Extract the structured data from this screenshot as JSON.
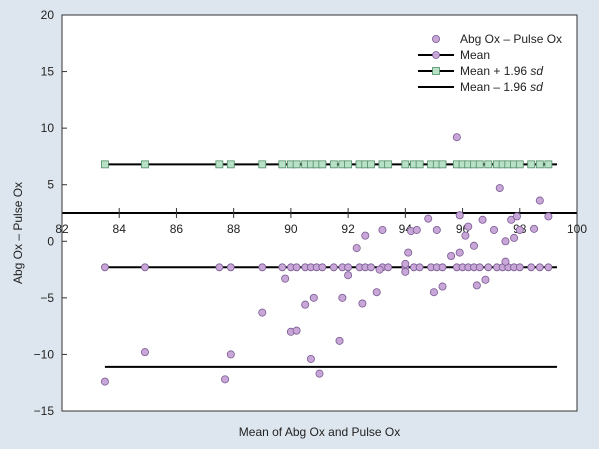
{
  "chart_data": {
    "type": "scatter",
    "xlabel": "Mean of Abg Ox and Pulse Ox",
    "ylabel": "Abg Ox – Pulse Ox",
    "xlim": [
      82,
      100
    ],
    "ylim": [
      -15,
      20
    ],
    "xticks": [
      "82",
      "84",
      "86",
      "88",
      "90",
      "92",
      "94",
      "96",
      "98",
      "100"
    ],
    "yticks": [
      "−15",
      "−10",
      "−5",
      "0",
      "5",
      "10",
      "15",
      "20"
    ],
    "grid": false,
    "legend_position": "top-right",
    "colors": {
      "background": "#dde6ee",
      "plot": "#ffffff",
      "scatter": "#c8a6d8",
      "scatter_edge": "#7a5a92",
      "mean_marker": "#c8a6d8",
      "upper_marker": "#b9e1c7",
      "upper_edge": "#4f8c66",
      "line": "#000000"
    },
    "legend": [
      {
        "key": "scatter",
        "label": "Abg Ox – Pulse Ox"
      },
      {
        "key": "mean",
        "label": "Mean"
      },
      {
        "key": "upper",
        "label_main": "Mean + 1.96 ",
        "label_em": "sd"
      },
      {
        "key": "lower",
        "label_main": "Mean – 1.96 ",
        "label_em": "sd"
      }
    ],
    "zero_line_y": 2.5,
    "mean_line": {
      "value": -2.3,
      "x_range": [
        83.5,
        99.3
      ],
      "marker_x": [
        83.5,
        84.9,
        87.5,
        87.9,
        89.0,
        89.7,
        90.0,
        90.2,
        90.5,
        90.7,
        90.9,
        91.1,
        91.5,
        91.8,
        92.0,
        92.4,
        92.6,
        92.8,
        93.2,
        93.4,
        94.0,
        94.3,
        94.5,
        94.9,
        95.1,
        95.3,
        95.8,
        96.0,
        96.2,
        96.4,
        96.6,
        96.9,
        97.2,
        97.4,
        97.6,
        97.8,
        98.0,
        98.4,
        98.7,
        99.0
      ]
    },
    "upper_line": {
      "value": 6.8,
      "x_range": [
        83.5,
        99.3
      ],
      "marker_x": [
        83.5,
        84.9,
        87.5,
        87.9,
        89.0,
        89.7,
        90.0,
        90.2,
        90.5,
        90.7,
        90.9,
        91.1,
        91.5,
        91.8,
        92.0,
        92.4,
        92.6,
        92.8,
        93.2,
        93.4,
        94.0,
        94.3,
        94.5,
        94.9,
        95.1,
        95.3,
        95.8,
        96.0,
        96.2,
        96.4,
        96.6,
        96.9,
        97.2,
        97.4,
        97.6,
        97.8,
        98.0,
        98.4,
        98.7,
        99.0
      ]
    },
    "lower_line": {
      "value": -11.1,
      "x_range": [
        83.5,
        99.3
      ]
    },
    "points": [
      {
        "x": 83.5,
        "y": -12.4
      },
      {
        "x": 84.9,
        "y": -9.8
      },
      {
        "x": 87.7,
        "y": -12.2
      },
      {
        "x": 87.9,
        "y": -10.0
      },
      {
        "x": 89.0,
        "y": -6.3
      },
      {
        "x": 89.8,
        "y": -3.3
      },
      {
        "x": 90.0,
        "y": -8.0
      },
      {
        "x": 90.2,
        "y": -7.9
      },
      {
        "x": 90.5,
        "y": -5.6
      },
      {
        "x": 90.8,
        "y": -5.0
      },
      {
        "x": 90.7,
        "y": -10.4
      },
      {
        "x": 91.0,
        "y": -11.7
      },
      {
        "x": 91.7,
        "y": -8.8
      },
      {
        "x": 91.8,
        "y": -5.0
      },
      {
        "x": 92.0,
        "y": -3.0
      },
      {
        "x": 92.3,
        "y": -0.6
      },
      {
        "x": 92.5,
        "y": -5.5
      },
      {
        "x": 92.6,
        "y": 0.5
      },
      {
        "x": 93.0,
        "y": -4.5
      },
      {
        "x": 93.1,
        "y": -2.5
      },
      {
        "x": 93.2,
        "y": 1.0
      },
      {
        "x": 94.0,
        "y": -2.0
      },
      {
        "x": 94.0,
        "y": -2.7
      },
      {
        "x": 94.1,
        "y": -1.0
      },
      {
        "x": 94.2,
        "y": 0.9
      },
      {
        "x": 94.4,
        "y": 1.0
      },
      {
        "x": 94.8,
        "y": 2.0
      },
      {
        "x": 95.0,
        "y": -4.5
      },
      {
        "x": 95.3,
        "y": -4.0
      },
      {
        "x": 95.1,
        "y": 1.0
      },
      {
        "x": 95.6,
        "y": -1.3
      },
      {
        "x": 95.8,
        "y": 9.2
      },
      {
        "x": 95.9,
        "y": 2.3
      },
      {
        "x": 95.9,
        "y": -1.0
      },
      {
        "x": 96.1,
        "y": 0.5
      },
      {
        "x": 96.2,
        "y": 1.3
      },
      {
        "x": 96.4,
        "y": -0.4
      },
      {
        "x": 96.5,
        "y": -3.9
      },
      {
        "x": 96.8,
        "y": -3.4
      },
      {
        "x": 96.7,
        "y": 1.9
      },
      {
        "x": 97.1,
        "y": 1.0
      },
      {
        "x": 97.3,
        "y": 4.7
      },
      {
        "x": 97.5,
        "y": -1.8
      },
      {
        "x": 97.5,
        "y": 0.0
      },
      {
        "x": 97.8,
        "y": 0.3
      },
      {
        "x": 97.7,
        "y": 1.9
      },
      {
        "x": 97.9,
        "y": 2.2
      },
      {
        "x": 98.0,
        "y": 1.0
      },
      {
        "x": 98.5,
        "y": 1.1
      },
      {
        "x": 98.7,
        "y": 3.6
      },
      {
        "x": 99.0,
        "y": 2.2
      }
    ]
  }
}
